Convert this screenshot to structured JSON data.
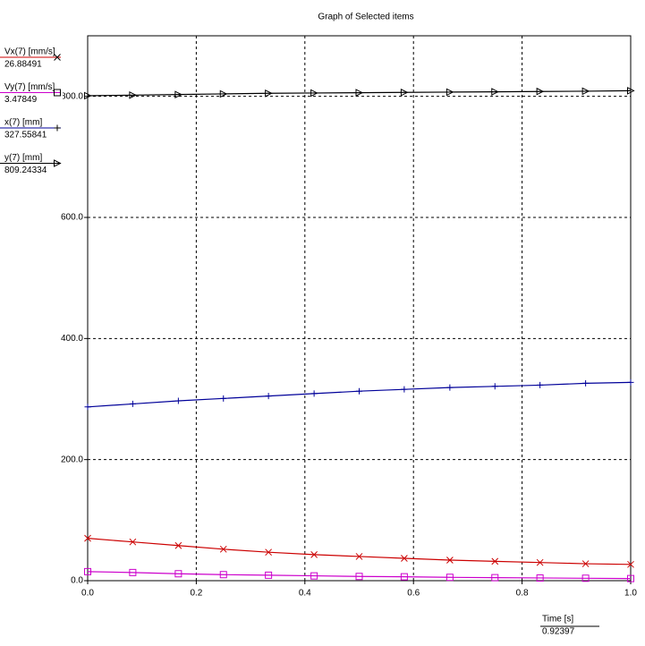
{
  "chart_data": {
    "type": "line",
    "title": "Graph of Selected items",
    "x_label": "Time [s]",
    "x_readout": "0.92397",
    "x": [
      0,
      0.083,
      0.167,
      0.25,
      0.333,
      0.417,
      0.5,
      0.583,
      0.667,
      0.75,
      0.833,
      0.917,
      1.0
    ],
    "series": [
      {
        "name": "Vx(7) [mm/s]",
        "readout": "26.88491",
        "color": "#cc0000",
        "marker": "x",
        "values": [
          70,
          64,
          58,
          52,
          47,
          43,
          40,
          37,
          34,
          32,
          30,
          28,
          26.88491
        ]
      },
      {
        "name": "Vy(7) [mm/s]",
        "readout": "3.47849",
        "color": "#cc00cc",
        "marker": "square",
        "values": [
          15,
          13.5,
          11.5,
          10,
          9,
          8,
          7,
          6.5,
          5.5,
          5,
          4.5,
          4,
          3.47849
        ]
      },
      {
        "name": "x(7) [mm]",
        "readout": "327.55841",
        "color": "#000099",
        "marker": "plus",
        "values": [
          287,
          292,
          297,
          301,
          305,
          309,
          313,
          316,
          319,
          321,
          323,
          326,
          327.55841
        ]
      },
      {
        "name": "y(7) [mm]",
        "readout": "809.24334",
        "color": "#000000",
        "marker": "triangle",
        "values": [
          801,
          802,
          803,
          804,
          805,
          805.5,
          806,
          806.5,
          807,
          807.5,
          808,
          808.5,
          809.24334
        ]
      }
    ],
    "xlim": [
      0,
      1
    ],
    "ylim": [
      0,
      900
    ],
    "xticks": [
      {
        "value": 0,
        "label": "0.0"
      },
      0.2,
      0.4,
      0.6,
      0.8,
      {
        "value": 1,
        "label": "1.0"
      }
    ],
    "yticks": [
      {
        "value": 0,
        "label": "0.0"
      },
      {
        "value": 200,
        "label": "200.0"
      },
      {
        "value": 400,
        "label": "400.0"
      },
      {
        "value": 600,
        "label": "600.0"
      },
      {
        "value": 800,
        "label": "800.0"
      }
    ],
    "grid": true
  }
}
